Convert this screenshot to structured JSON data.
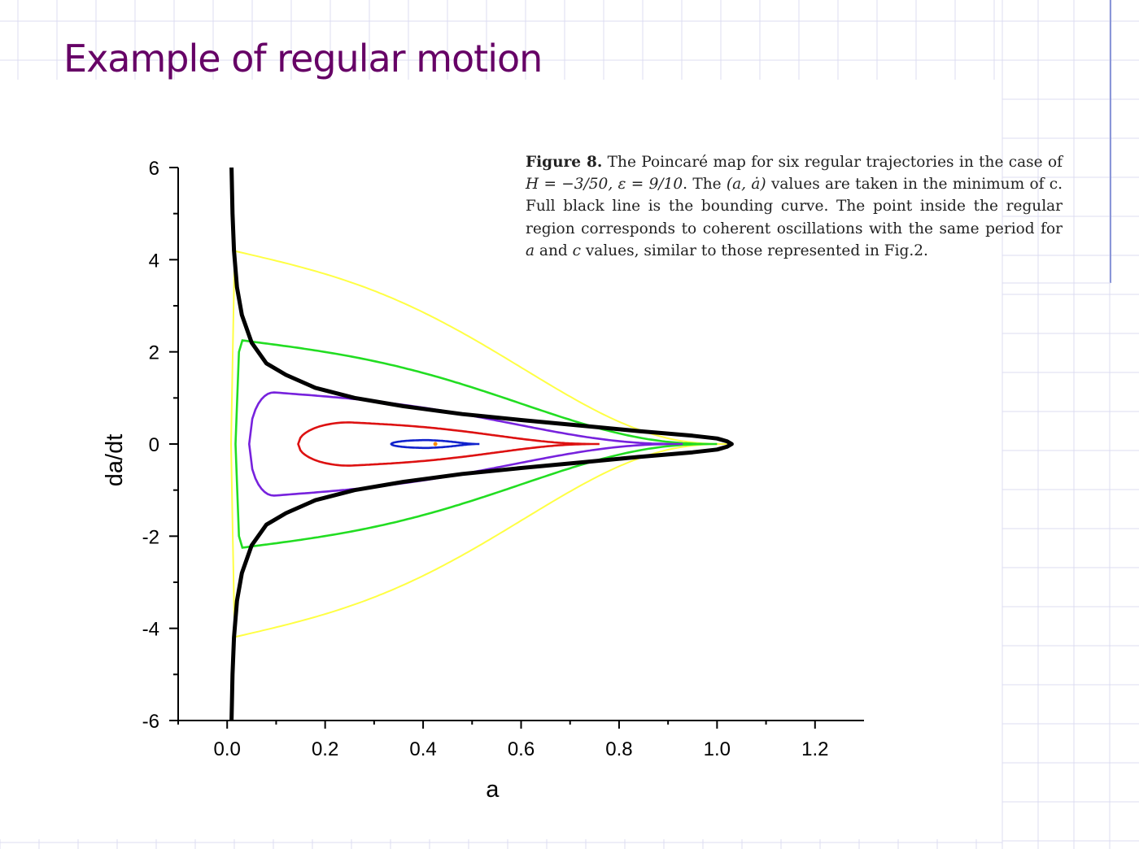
{
  "slide": {
    "title": "Example of regular motion",
    "colors": {
      "title": "#660066",
      "grid": "#dcdcf2",
      "accent_line": "#8a96d8"
    }
  },
  "caption": {
    "label": "Figure 8.",
    "parts": [
      " The Poincaré map for six regular trajectories in the case of ",
      "H = −3/50, ε = 9/10",
      ". The ",
      "(a, ȧ)",
      " values are taken in the minimum of c. Full black line is the bounding curve. The point inside the regular region corresponds to coherent oscillations with the same period for ",
      "a",
      " and ",
      "c",
      " values, similar to those represented in Fig.2."
    ]
  },
  "chart_data": {
    "type": "line",
    "title": "",
    "xlabel": "a",
    "ylabel": "da/dt",
    "xlim": [
      -0.1,
      1.3
    ],
    "ylim": [
      -6,
      6
    ],
    "xticks": [
      0.0,
      0.2,
      0.4,
      0.6,
      0.8,
      1.0,
      1.2
    ],
    "xtick_labels": [
      "0.0",
      "0.2",
      "0.4",
      "0.6",
      "0.8",
      "1.0",
      "1.2"
    ],
    "yticks": [
      6,
      4,
      2,
      0,
      -2,
      -4,
      -6
    ],
    "ytick_labels": [
      "6",
      "4",
      "2",
      "0",
      "-2",
      "-4",
      "-6"
    ],
    "grid": false,
    "legend": "none",
    "boundary_curve": {
      "color": "#000000",
      "points": [
        [
          0.009,
          6.0
        ],
        [
          0.011,
          5.0
        ],
        [
          0.014,
          4.2
        ],
        [
          0.02,
          3.4
        ],
        [
          0.03,
          2.8
        ],
        [
          0.05,
          2.2
        ],
        [
          0.08,
          1.75
        ],
        [
          0.12,
          1.5
        ],
        [
          0.18,
          1.22
        ],
        [
          0.26,
          1.0
        ],
        [
          0.36,
          0.82
        ],
        [
          0.48,
          0.65
        ],
        [
          0.6,
          0.52
        ],
        [
          0.72,
          0.4
        ],
        [
          0.84,
          0.28
        ],
        [
          0.95,
          0.18
        ],
        [
          1.0,
          0.12
        ],
        [
          1.02,
          0.06
        ],
        [
          1.03,
          0.0
        ]
      ]
    },
    "closed_curves": [
      {
        "color": "#ffff44",
        "left": 0.008,
        "half_height": 4.2,
        "right": 1.02,
        "peak_a": 0.011
      },
      {
        "color": "#22dd22",
        "left": 0.017,
        "half_height": 2.25,
        "right": 1.0,
        "peak_a": 0.03
      },
      {
        "color": "#7722dd",
        "left": 0.045,
        "half_height": 1.12,
        "right": 0.93,
        "peak_a": 0.095
      },
      {
        "color": "#dd1111",
        "left": 0.145,
        "half_height": 0.47,
        "right": 0.76,
        "peak_a": 0.25
      },
      {
        "color": "#1122cc",
        "left": 0.335,
        "half_height": 0.085,
        "right": 0.515,
        "peak_a": 0.41
      }
    ],
    "fixed_point": {
      "color": "#ff8800",
      "a": 0.425,
      "dadt": 0.0
    }
  }
}
